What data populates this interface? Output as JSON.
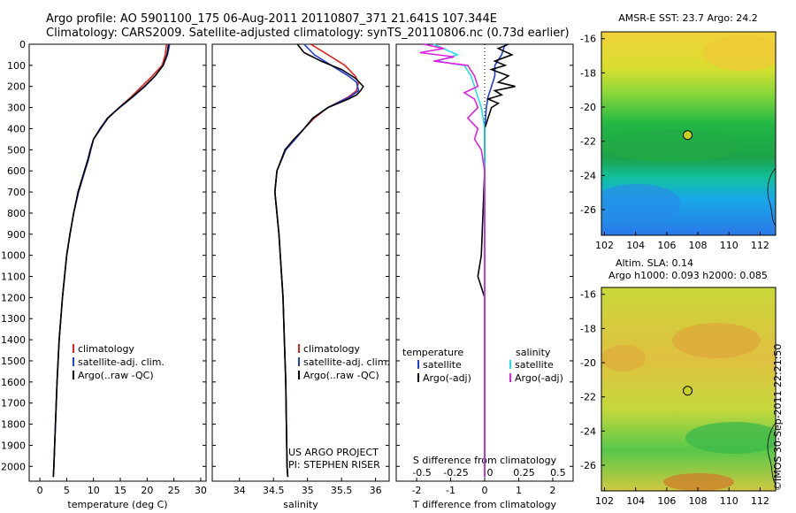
{
  "header": {
    "line1": "Argo profile: AO 5901100_175 06-Aug-2011 20110807_371 21.641S 107.344E",
    "line2": "Climatology: CARS2009. Satellite-adjusted climatology: synTS_20110806.nc (0.73d earlier)"
  },
  "stamp": "©IMOS 30-Sep-2011 22:21:50",
  "colors": {
    "climatology": "#e8201c",
    "satellite": "#1f3ce0",
    "argo": "#000000",
    "salinity_sat": "#20e0e8",
    "salinity_argo": "#e020e0"
  },
  "chart_data": [
    {
      "type": "line",
      "xlabel": "temperature (deg C)",
      "ylabel": "",
      "xlim": [
        -2,
        31
      ],
      "ylim": [
        2070,
        0
      ],
      "xticks": [
        0,
        5,
        10,
        15,
        20,
        25,
        30
      ],
      "yticks": [
        0,
        100,
        200,
        300,
        400,
        500,
        600,
        700,
        800,
        900,
        1000,
        1100,
        1200,
        1300,
        1400,
        1500,
        1600,
        1700,
        1800,
        1900,
        2000
      ],
      "legend": [
        "climatology",
        "satellite-adj. clim.",
        "Argo(..raw -QC)"
      ],
      "series": [
        {
          "name": "climatology",
          "color": "#e8201c",
          "y": [
            0,
            50,
            100,
            150,
            200,
            250,
            300,
            350,
            400,
            450,
            500,
            550,
            600,
            650,
            700,
            800,
            900,
            1000,
            1200,
            1400,
            1600,
            1800,
            2000,
            2050
          ],
          "x": [
            23.6,
            23.4,
            22.8,
            21.0,
            19.0,
            17.0,
            14.8,
            12.6,
            11.3,
            10.0,
            9.5,
            9.0,
            8.4,
            7.8,
            7.2,
            6.3,
            5.6,
            5.0,
            4.2,
            3.6,
            3.2,
            2.9,
            2.6,
            2.5
          ]
        },
        {
          "name": "satellite-adj. clim.",
          "color": "#1f3ce0",
          "y": [
            0,
            50,
            100,
            150,
            200,
            250,
            300,
            350,
            400,
            450,
            500,
            550,
            600,
            650,
            700,
            800,
            900,
            1000,
            1200,
            1400,
            1600,
            1800,
            2000,
            2050
          ],
          "x": [
            24.2,
            23.8,
            23.0,
            21.5,
            19.6,
            17.3,
            14.9,
            12.6,
            11.2,
            10.0,
            9.5,
            9.0,
            8.4,
            7.8,
            7.2,
            6.3,
            5.6,
            5.0,
            4.2,
            3.6,
            3.2,
            2.9,
            2.6,
            2.5
          ]
        },
        {
          "name": "Argo(..raw -QC)",
          "color": "#000000",
          "y": [
            0,
            50,
            100,
            150,
            200,
            250,
            300,
            350,
            400,
            450,
            500,
            550,
            600,
            650,
            700,
            800,
            900,
            1000,
            1200,
            1400,
            1600,
            1800,
            2000,
            2050
          ],
          "x": [
            24.0,
            23.7,
            23.0,
            21.5,
            19.5,
            17.2,
            14.8,
            12.7,
            11.3,
            10.0,
            9.4,
            8.9,
            8.3,
            7.7,
            7.1,
            6.3,
            5.6,
            5.0,
            4.2,
            3.6,
            3.2,
            2.9,
            2.6,
            2.5
          ]
        }
      ]
    },
    {
      "type": "line",
      "xlabel": "salinity",
      "xlim": [
        33.6,
        36.2
      ],
      "ylim": [
        2070,
        0
      ],
      "xticks": [
        34,
        34.5,
        35,
        35.5,
        36
      ],
      "legend": [
        "climatology",
        "satellite-adj. clim.",
        "Argo(..raw -QC)"
      ],
      "annotation": [
        "US ARGO PROJECT",
        "PI: STEPHEN RISER"
      ],
      "series": [
        {
          "name": "climatology",
          "color": "#e8201c",
          "y": [
            0,
            50,
            100,
            150,
            180,
            220,
            250,
            300,
            350,
            400,
            450,
            500,
            600,
            700,
            800,
            900,
            1000,
            1200,
            1400,
            1600,
            1800,
            2000,
            2050
          ],
          "x": [
            35.05,
            35.3,
            35.55,
            35.7,
            35.75,
            35.72,
            35.6,
            35.3,
            35.1,
            34.95,
            34.82,
            34.68,
            34.55,
            34.52,
            34.55,
            34.58,
            34.6,
            34.64,
            34.66,
            34.68,
            34.69,
            34.7,
            34.71
          ]
        },
        {
          "name": "satellite-adj. clim.",
          "color": "#1f3ce0",
          "y": [
            0,
            50,
            100,
            150,
            180,
            220,
            250,
            300,
            350,
            400,
            450,
            500,
            600,
            700,
            800,
            900,
            1000,
            1200,
            1400,
            1600,
            1800,
            2000,
            2050
          ],
          "x": [
            34.95,
            35.1,
            35.35,
            35.6,
            35.72,
            35.75,
            35.62,
            35.3,
            35.08,
            34.95,
            34.82,
            34.68,
            34.55,
            34.52,
            34.55,
            34.58,
            34.6,
            34.64,
            34.66,
            34.68,
            34.69,
            34.7,
            34.71
          ]
        },
        {
          "name": "Argo(..raw -QC)",
          "color": "#000000",
          "y": [
            0,
            40,
            80,
            120,
            160,
            200,
            220,
            240,
            260,
            300,
            350,
            400,
            450,
            500,
            600,
            700,
            800,
            900,
            1000,
            1200,
            1400,
            1600,
            1800,
            2000,
            2050
          ],
          "x": [
            34.85,
            34.95,
            35.2,
            35.5,
            35.7,
            35.82,
            35.78,
            35.72,
            35.6,
            35.3,
            35.08,
            34.95,
            34.8,
            34.67,
            34.55,
            34.52,
            34.55,
            34.58,
            34.6,
            34.64,
            34.66,
            34.68,
            34.69,
            34.7,
            34.71
          ]
        }
      ]
    },
    {
      "type": "line",
      "xlabel": "T difference from climatology",
      "xlabel2": "S difference from climatology",
      "xlim": [
        -2.6,
        2.6
      ],
      "ylim": [
        2070,
        0
      ],
      "xticks_bottom": [
        -2,
        -1,
        0,
        1,
        2
      ],
      "xticks_top": [
        "-0.5",
        "-0.25",
        "0",
        "0.25",
        "0.5"
      ],
      "legend": {
        "headers": [
          "temperature",
          "salinity"
        ],
        "items": [
          "satellite",
          "Argo(-adj)",
          "satellite",
          "Argo(-adj)"
        ]
      },
      "series": [
        {
          "name": "temperature satellite",
          "color": "#1f3ce0",
          "y": [
            0,
            50,
            100,
            150,
            200,
            250,
            300,
            400,
            600,
            800,
            1000,
            1500,
            2000,
            2050
          ],
          "x": [
            0.6,
            0.5,
            0.3,
            0.3,
            0.2,
            0.1,
            0.05,
            0,
            0,
            0,
            0,
            0,
            0,
            0
          ]
        },
        {
          "name": "temperature Argo(-adj)",
          "color": "#000000",
          "y": [
            0,
            20,
            50,
            80,
            100,
            120,
            150,
            180,
            200,
            220,
            240,
            260,
            280,
            300,
            350,
            400,
            500,
            600,
            800,
            1000,
            1100,
            1200,
            1500,
            2000,
            2050
          ],
          "x": [
            0.7,
            0.4,
            0.8,
            0.3,
            0.6,
            0.2,
            0.7,
            0.4,
            0.9,
            0.3,
            0.5,
            0.1,
            0.4,
            0.2,
            0.1,
            0,
            0,
            0,
            -0.05,
            -0.1,
            -0.2,
            0,
            0,
            0,
            0
          ]
        },
        {
          "name": "salinity satellite",
          "color": "#20e0e8",
          "y": [
            0,
            50,
            80,
            100,
            150,
            200,
            250,
            300,
            400,
            600,
            800,
            1000,
            1500,
            2000,
            2050
          ],
          "x": [
            -1.5,
            -0.8,
            -1.4,
            -0.6,
            -0.4,
            -0.3,
            -0.2,
            -0.1,
            0,
            0,
            0,
            0,
            0,
            0,
            0
          ]
        },
        {
          "name": "salinity Argo(-adj)",
          "color": "#e020e0",
          "y": [
            0,
            20,
            40,
            60,
            80,
            100,
            150,
            200,
            230,
            260,
            300,
            350,
            400,
            450,
            500,
            600,
            800,
            1000,
            1500,
            2000,
            2050
          ],
          "x": [
            -1.8,
            -1.2,
            -1.9,
            -0.9,
            -1.5,
            -0.5,
            -0.3,
            -0.2,
            -0.6,
            -0.3,
            -0.2,
            -0.5,
            -0.2,
            -0.3,
            -0.1,
            0,
            0,
            0,
            0,
            0,
            0
          ]
        }
      ]
    },
    {
      "type": "heatmap",
      "title": "AMSR-E SST: 23.7 Argo: 24.2",
      "xlim": [
        101.8,
        113.0
      ],
      "ylim": [
        -27.5,
        -15.6
      ],
      "xticks": [
        102,
        104,
        106,
        108,
        110,
        112
      ],
      "yticks": [
        -16,
        -18,
        -20,
        -22,
        -24,
        -26
      ],
      "argo_point": {
        "lon": 107.344,
        "lat": -21.641
      }
    },
    {
      "type": "heatmap",
      "title": "Altim. SLA: 0.14",
      "subtitle": "Argo h1000: 0.093 h2000: 0.085",
      "xlim": [
        101.8,
        113.0
      ],
      "ylim": [
        -27.5,
        -15.6
      ],
      "xticks": [
        102,
        104,
        106,
        108,
        110,
        112
      ],
      "yticks": [
        -16,
        -18,
        -20,
        -22,
        -24,
        -26
      ],
      "argo_point": {
        "lon": 107.344,
        "lat": -21.641
      }
    }
  ]
}
